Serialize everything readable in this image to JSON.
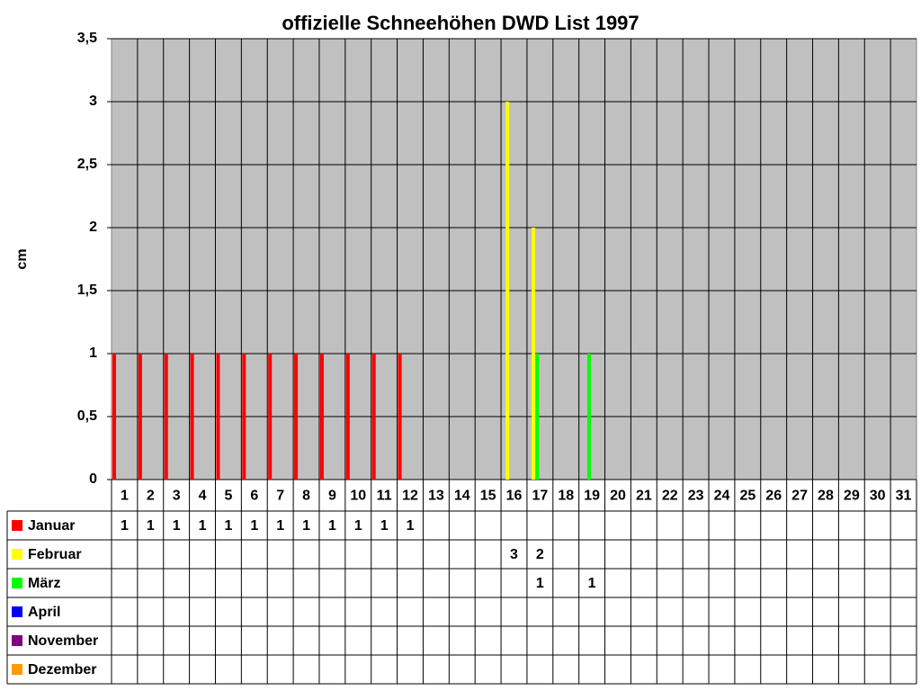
{
  "chart_data": {
    "type": "bar",
    "title": "offizielle Schneehöhen DWD List 1997",
    "y_label": "cm",
    "categories": [
      "1",
      "2",
      "3",
      "4",
      "5",
      "6",
      "7",
      "8",
      "9",
      "10",
      "11",
      "12",
      "13",
      "14",
      "15",
      "16",
      "17",
      "18",
      "19",
      "20",
      "21",
      "22",
      "23",
      "24",
      "25",
      "26",
      "27",
      "28",
      "29",
      "30",
      "31"
    ],
    "series": [
      {
        "name": "Januar",
        "color": "#ff0000",
        "values": [
          1,
          1,
          1,
          1,
          1,
          1,
          1,
          1,
          1,
          1,
          1,
          1,
          null,
          null,
          null,
          null,
          null,
          null,
          null,
          null,
          null,
          null,
          null,
          null,
          null,
          null,
          null,
          null,
          null,
          null,
          null
        ]
      },
      {
        "name": "Februar",
        "color": "#ffff00",
        "values": [
          null,
          null,
          null,
          null,
          null,
          null,
          null,
          null,
          null,
          null,
          null,
          null,
          null,
          null,
          null,
          3,
          2,
          null,
          null,
          null,
          null,
          null,
          null,
          null,
          null,
          null,
          null,
          null,
          null,
          null,
          null
        ]
      },
      {
        "name": "März",
        "color": "#00ff00",
        "values": [
          null,
          null,
          null,
          null,
          null,
          null,
          null,
          null,
          null,
          null,
          null,
          null,
          null,
          null,
          null,
          null,
          1,
          null,
          1,
          null,
          null,
          null,
          null,
          null,
          null,
          null,
          null,
          null,
          null,
          null,
          null
        ]
      },
      {
        "name": "April",
        "color": "#0000ff",
        "values": [
          null,
          null,
          null,
          null,
          null,
          null,
          null,
          null,
          null,
          null,
          null,
          null,
          null,
          null,
          null,
          null,
          null,
          null,
          null,
          null,
          null,
          null,
          null,
          null,
          null,
          null,
          null,
          null,
          null,
          null,
          null
        ]
      },
      {
        "name": "November",
        "color": "#800080",
        "values": [
          null,
          null,
          null,
          null,
          null,
          null,
          null,
          null,
          null,
          null,
          null,
          null,
          null,
          null,
          null,
          null,
          null,
          null,
          null,
          null,
          null,
          null,
          null,
          null,
          null,
          null,
          null,
          null,
          null,
          null,
          null
        ]
      },
      {
        "name": "Dezember",
        "color": "#ff9900",
        "values": [
          null,
          null,
          null,
          null,
          null,
          null,
          null,
          null,
          null,
          null,
          null,
          null,
          null,
          null,
          null,
          null,
          null,
          null,
          null,
          null,
          null,
          null,
          null,
          null,
          null,
          null,
          null,
          null,
          null,
          null,
          null
        ]
      }
    ],
    "ylim": [
      0,
      3.5
    ],
    "yticks": [
      0,
      {
        "value": 0.5,
        "label": "0,5"
      },
      1,
      {
        "value": 1.5,
        "label": "1,5"
      },
      2,
      {
        "value": 2.5,
        "label": "2,5"
      },
      3,
      {
        "value": 3.5,
        "label": "3,5"
      }
    ],
    "grid": true,
    "background": "#c0c0c0"
  }
}
